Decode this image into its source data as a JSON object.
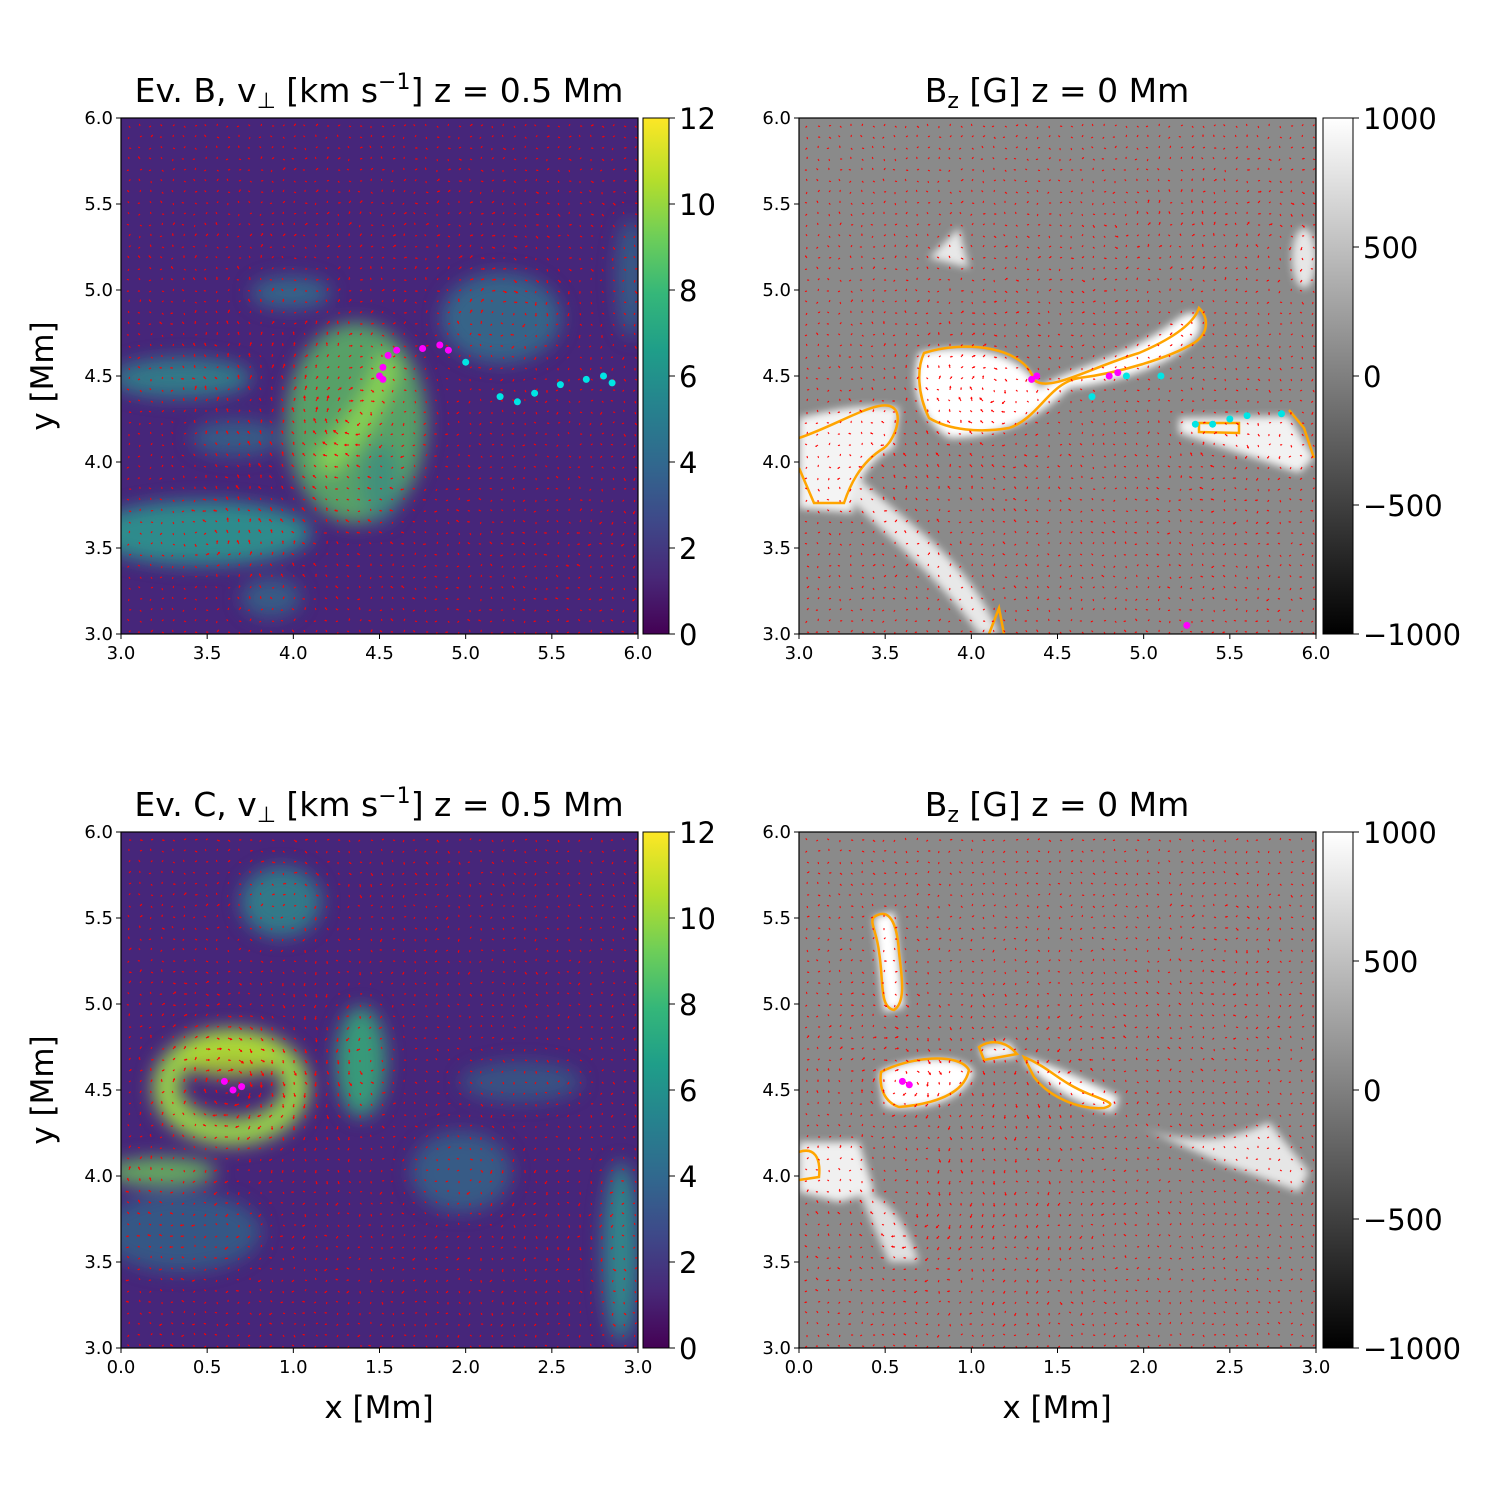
{
  "figure": {
    "xlabel": "x [Mm]",
    "ylabel": "y [Mm]"
  },
  "panels": [
    {
      "id": "b-vperp",
      "title_prefix": "Ev. B, ",
      "title_sym": "v",
      "title_sub": "⊥",
      "title_units": " [km s",
      "title_exp": "−1",
      "title_suffix": "] z = 0.5 Mm",
      "x_ticks": [
        "3.0",
        "3.5",
        "4.0",
        "4.5",
        "5.0",
        "5.5",
        "6.0"
      ],
      "y_ticks": [
        "3.0",
        "3.5",
        "4.0",
        "4.5",
        "5.0",
        "5.5",
        "6.0"
      ],
      "cb_ticks": [
        "0",
        "2",
        "4",
        "6",
        "8",
        "10",
        "12"
      ]
    },
    {
      "id": "b-bz",
      "title_prefix": "",
      "title_sym": "B",
      "title_sub": "z",
      "title_units": " [G] z = 0 Mm",
      "title_exp": "",
      "title_suffix": "",
      "x_ticks": [
        "3.0",
        "3.5",
        "4.0",
        "4.5",
        "5.0",
        "5.5",
        "6.0"
      ],
      "y_ticks": [
        "3.0",
        "3.5",
        "4.0",
        "4.5",
        "5.0",
        "5.5",
        "6.0"
      ],
      "cb_ticks": [
        "−1000",
        "−500",
        "0",
        "500",
        "1000"
      ]
    },
    {
      "id": "c-vperp",
      "title_prefix": "Ev. C, ",
      "title_sym": "v",
      "title_sub": "⊥",
      "title_units": " [km s",
      "title_exp": "−1",
      "title_suffix": "] z = 0.5 Mm",
      "x_ticks": [
        "0.0",
        "0.5",
        "1.0",
        "1.5",
        "2.0",
        "2.5",
        "3.0"
      ],
      "y_ticks": [
        "3.0",
        "3.5",
        "4.0",
        "4.5",
        "5.0",
        "5.5",
        "6.0"
      ],
      "cb_ticks": [
        "0",
        "2",
        "4",
        "6",
        "8",
        "10",
        "12"
      ]
    },
    {
      "id": "c-bz",
      "title_prefix": "",
      "title_sym": "B",
      "title_sub": "z",
      "title_units": " [G] z = 0 Mm",
      "title_exp": "",
      "title_suffix": "",
      "x_ticks": [
        "0.0",
        "0.5",
        "1.0",
        "1.5",
        "2.0",
        "2.5",
        "3.0"
      ],
      "y_ticks": [
        "3.0",
        "3.5",
        "4.0",
        "4.5",
        "5.0",
        "5.5",
        "6.0"
      ],
      "cb_ticks": [
        "−1000",
        "−500",
        "0",
        "500",
        "1000"
      ]
    }
  ],
  "colors": {
    "arrows": "#ff0000",
    "contour": "#ffa500",
    "points_magenta": "#ff00ff",
    "points_cyan": "#00e5e5",
    "viridis": [
      "#440154",
      "#482878",
      "#3e4989",
      "#31688e",
      "#26828e",
      "#1f9e89",
      "#35b779",
      "#6ece58",
      "#b5de2b",
      "#fde725"
    ]
  },
  "chart_data": [
    {
      "panel": "b-vperp",
      "type": "heatmap",
      "title": "Ev. B, v⊥ [km s−1] z = 0.5 Mm",
      "xlabel": "",
      "ylabel": "y [Mm]",
      "xlim": [
        3.0,
        6.0
      ],
      "ylim": [
        3.0,
        6.0
      ],
      "colorbar": {
        "range": [
          0,
          12
        ],
        "colormap": "viridis"
      },
      "overlay": "red velocity arrows",
      "high_speed_regions": [
        {
          "x": [
            4.0,
            4.5
          ],
          "y": [
            3.8,
            4.7
          ],
          "value": 12
        },
        {
          "x": [
            3.0,
            4.1
          ],
          "y": [
            3.4,
            3.7
          ],
          "value": 7
        },
        {
          "x": [
            3.2,
            4.0
          ],
          "y": [
            4.4,
            4.6
          ],
          "value": 6
        },
        {
          "x": [
            4.6,
            5.1
          ],
          "y": [
            4.7,
            5.1
          ],
          "value": 5
        },
        {
          "x": [
            3.5,
            4.1
          ],
          "y": [
            4.0,
            4.3
          ],
          "value": 6
        },
        {
          "x": [
            3.7,
            4.0
          ],
          "y": [
            4.8,
            5.0
          ],
          "value": 5
        }
      ],
      "series": [
        {
          "color": "magenta",
          "points": [
            [
              4.5,
              4.5
            ],
            [
              4.52,
              4.55
            ],
            [
              4.55,
              4.62
            ],
            [
              4.6,
              4.65
            ],
            [
              4.75,
              4.66
            ],
            [
              4.85,
              4.68
            ],
            [
              4.9,
              4.65
            ],
            [
              4.52,
              4.48
            ]
          ]
        },
        {
          "color": "cyan",
          "points": [
            [
              5.0,
              4.58
            ],
            [
              5.2,
              4.38
            ],
            [
              5.3,
              4.35
            ],
            [
              5.4,
              4.4
            ],
            [
              5.55,
              4.45
            ],
            [
              5.7,
              4.48
            ],
            [
              5.8,
              4.5
            ],
            [
              5.85,
              4.46
            ]
          ]
        }
      ]
    },
    {
      "panel": "b-bz",
      "type": "heatmap",
      "title": "Bz [G] z = 0 Mm",
      "xlabel": "",
      "ylabel": "",
      "xlim": [
        3.0,
        6.0
      ],
      "ylim": [
        3.0,
        6.0
      ],
      "colorbar": {
        "range": [
          -1000,
          1000
        ],
        "colormap": "gray"
      },
      "overlay": "red velocity arrows, orange contours",
      "series": [
        {
          "color": "magenta",
          "points": [
            [
              4.35,
              4.48
            ],
            [
              4.38,
              4.5
            ],
            [
              4.8,
              4.5
            ],
            [
              4.85,
              4.52
            ],
            [
              5.25,
              3.05
            ]
          ]
        },
        {
          "color": "cyan",
          "points": [
            [
              4.7,
              4.38
            ],
            [
              4.9,
              4.5
            ],
            [
              5.1,
              4.5
            ],
            [
              5.3,
              4.22
            ],
            [
              5.4,
              4.22
            ],
            [
              5.5,
              4.25
            ],
            [
              5.6,
              4.27
            ],
            [
              5.8,
              4.28
            ]
          ]
        }
      ]
    },
    {
      "panel": "c-vperp",
      "type": "heatmap",
      "title": "Ev. C, v⊥ [km s−1] z = 0.5 Mm",
      "xlabel": "x [Mm]",
      "ylabel": "y [Mm]",
      "xlim": [
        0.0,
        3.0
      ],
      "ylim": [
        3.0,
        6.0
      ],
      "colorbar": {
        "range": [
          0,
          12
        ],
        "colormap": "viridis"
      },
      "overlay": "red velocity arrows",
      "high_speed_regions": [
        {
          "x": [
            0.3,
            1.0
          ],
          "y": [
            4.25,
            4.75
          ],
          "value": 10
        },
        {
          "x": [
            0.0,
            0.6
          ],
          "y": [
            3.9,
            4.1
          ],
          "value": 8
        },
        {
          "x": [
            1.2,
            1.5
          ],
          "y": [
            4.2,
            4.8
          ],
          "value": 8
        },
        {
          "x": [
            0.7,
            1.1
          ],
          "y": [
            5.4,
            5.8
          ],
          "value": 6
        },
        {
          "x": [
            2.7,
            3.0
          ],
          "y": [
            3.0,
            4.0
          ],
          "value": 6
        },
        {
          "x": [
            1.7,
            2.2
          ],
          "y": [
            3.6,
            4.1
          ],
          "value": 5
        }
      ],
      "series": [
        {
          "color": "magenta",
          "points": [
            [
              0.6,
              4.55
            ],
            [
              0.65,
              4.5
            ],
            [
              0.7,
              4.52
            ]
          ]
        }
      ]
    },
    {
      "panel": "c-bz",
      "type": "heatmap",
      "title": "Bz [G] z = 0 Mm",
      "xlabel": "x [Mm]",
      "ylabel": "",
      "xlim": [
        0.0,
        3.0
      ],
      "ylim": [
        3.0,
        6.0
      ],
      "colorbar": {
        "range": [
          -1000,
          1000
        ],
        "colormap": "gray"
      },
      "overlay": "red velocity arrows, orange contours",
      "series": [
        {
          "color": "magenta",
          "points": [
            [
              0.6,
              4.55
            ],
            [
              0.64,
              4.53
            ]
          ]
        }
      ]
    }
  ]
}
